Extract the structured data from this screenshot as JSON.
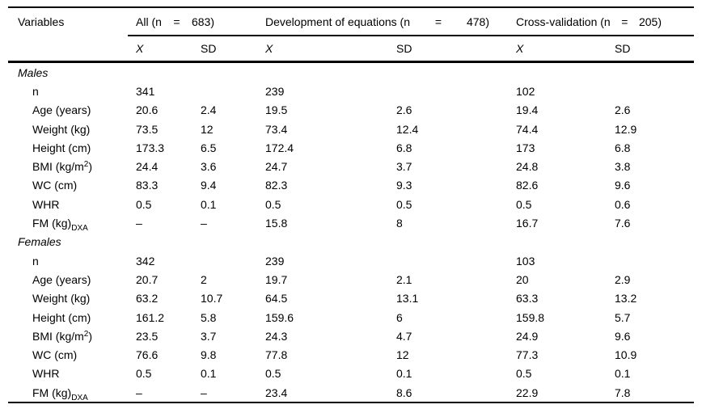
{
  "table": {
    "variables_header": "Variables",
    "groups": [
      {
        "parts": [
          "All (n",
          "=",
          "683)"
        ]
      },
      {
        "parts": [
          "Development of equations (n",
          "=",
          "478)"
        ]
      },
      {
        "parts": [
          "Cross-validation (n",
          "=",
          "205)"
        ]
      }
    ],
    "subheaders": [
      "X",
      "SD",
      "X",
      "SD",
      "X",
      "SD"
    ],
    "missing_marker": "–",
    "sections": [
      {
        "title": "Males",
        "rows": [
          {
            "label_parts": [
              {
                "t": "n"
              }
            ],
            "values": [
              "341",
              "",
              "239",
              "",
              "102",
              ""
            ]
          },
          {
            "label_parts": [
              {
                "t": "Age (years)"
              }
            ],
            "values": [
              "20.6",
              "2.4",
              "19.5",
              "2.6",
              "19.4",
              "2.6"
            ]
          },
          {
            "label_parts": [
              {
                "t": "Weight (kg)"
              }
            ],
            "values": [
              "73.5",
              "12",
              "73.4",
              "12.4",
              "74.4",
              "12.9"
            ]
          },
          {
            "label_parts": [
              {
                "t": "Height (cm)"
              }
            ],
            "values": [
              "173.3",
              "6.5",
              "172.4",
              "6.8",
              "173",
              "6.8"
            ]
          },
          {
            "label_parts": [
              {
                "t": "BMI (kg/m"
              },
              {
                "t": "2",
                "style": "sup"
              },
              {
                "t": ")"
              }
            ],
            "values": [
              "24.4",
              "3.6",
              "24.7",
              "3.7",
              "24.8",
              "3.8"
            ]
          },
          {
            "label_parts": [
              {
                "t": "WC (cm)"
              }
            ],
            "values": [
              "83.3",
              "9.4",
              "82.3",
              "9.3",
              "82.6",
              "9.6"
            ]
          },
          {
            "label_parts": [
              {
                "t": "WHR"
              }
            ],
            "values": [
              "0.5",
              "0.1",
              "0.5",
              "0.5",
              "0.5",
              "0.6"
            ]
          },
          {
            "label_parts": [
              {
                "t": "FM (kg)"
              },
              {
                "t": "DXA",
                "style": "sub"
              }
            ],
            "values": [
              "–",
              "–",
              "15.8",
              "8",
              "16.7",
              "7.6"
            ]
          }
        ]
      },
      {
        "title": "Females",
        "rows": [
          {
            "label_parts": [
              {
                "t": "n"
              }
            ],
            "values": [
              "342",
              "",
              "239",
              "",
              "103",
              ""
            ]
          },
          {
            "label_parts": [
              {
                "t": "Age (years)"
              }
            ],
            "values": [
              "20.7",
              "2",
              "19.7",
              "2.1",
              "20",
              "2.9"
            ]
          },
          {
            "label_parts": [
              {
                "t": "Weight (kg)"
              }
            ],
            "values": [
              "63.2",
              "10.7",
              "64.5",
              "13.1",
              "63.3",
              "13.2"
            ]
          },
          {
            "label_parts": [
              {
                "t": "Height (cm)"
              }
            ],
            "values": [
              "161.2",
              "5.8",
              "159.6",
              "6",
              "159.8",
              "5.7"
            ]
          },
          {
            "label_parts": [
              {
                "t": "BMI (kg/m"
              },
              {
                "t": "2",
                "style": "sup"
              },
              {
                "t": ")"
              }
            ],
            "values": [
              "23.5",
              "3.7",
              "24.3",
              "4.7",
              "24.9",
              "9.6"
            ]
          },
          {
            "label_parts": [
              {
                "t": "WC (cm)"
              }
            ],
            "values": [
              "76.6",
              "9.8",
              "77.8",
              "12",
              "77.3",
              "10.9"
            ]
          },
          {
            "label_parts": [
              {
                "t": "WHR"
              }
            ],
            "values": [
              "0.5",
              "0.1",
              "0.5",
              "0.1",
              "0.5",
              "0.1"
            ]
          },
          {
            "label_parts": [
              {
                "t": "FM (kg)"
              },
              {
                "t": "DXA",
                "style": "sub"
              }
            ],
            "values": [
              "–",
              "–",
              "23.4",
              "8.6",
              "22.9",
              "7.8"
            ]
          }
        ]
      }
    ]
  }
}
